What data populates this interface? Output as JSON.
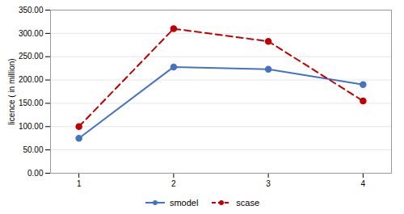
{
  "chart_data": {
    "type": "line",
    "x": [
      1,
      2,
      3,
      4
    ],
    "series": [
      {
        "name": "smodel",
        "color": "#4472c4",
        "marker": "circle",
        "line_style": "solid",
        "values": [
          75,
          228,
          223,
          190
        ]
      },
      {
        "name": "scase",
        "color": "#c00000",
        "marker": "circle",
        "line_style": "dashed",
        "values": [
          100,
          310,
          283,
          155
        ]
      }
    ],
    "ylabel": "licence ( in million)",
    "xlim": [
      0.7,
      4.3
    ],
    "xticks": [
      1,
      2,
      3,
      4
    ],
    "ylim": [
      0,
      350
    ],
    "yticks": [
      {
        "value": 0,
        "label": "0.00"
      },
      {
        "value": 50,
        "label": "50.00"
      },
      {
        "value": 100,
        "label": "100.00"
      },
      {
        "value": 150,
        "label": "150.00"
      },
      {
        "value": 200,
        "label": "200.00"
      },
      {
        "value": 250,
        "label": "250.00"
      },
      {
        "value": 300,
        "label": "300.00"
      },
      {
        "value": 350,
        "label": "350.00"
      }
    ],
    "grid": true,
    "legend": "bottom"
  }
}
